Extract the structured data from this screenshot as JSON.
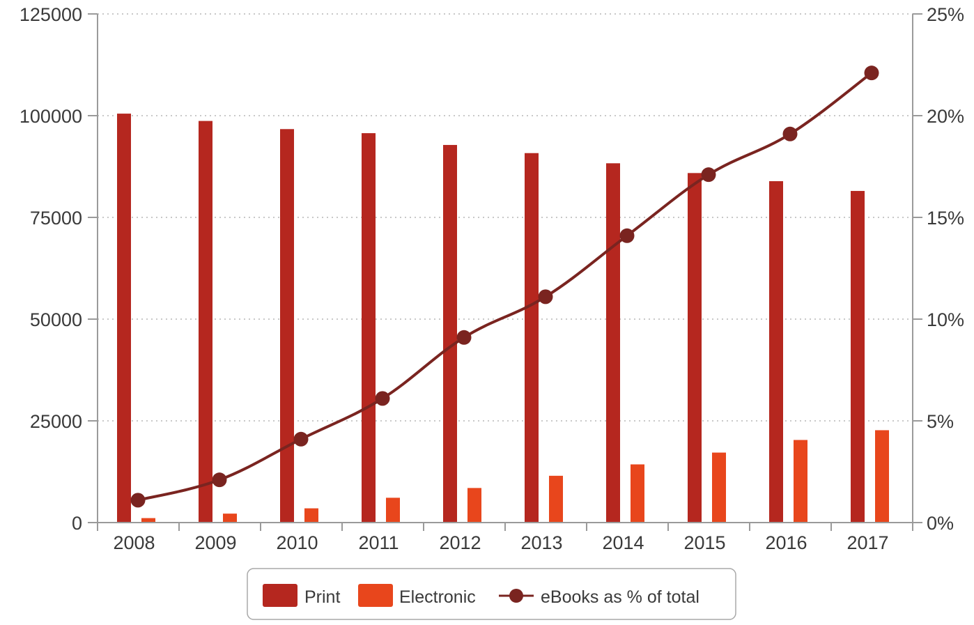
{
  "chart_data": {
    "type": "bar",
    "title": "",
    "xlabel": "",
    "ylabel": "",
    "categories": [
      "2008",
      "2009",
      "2010",
      "2011",
      "2012",
      "2013",
      "2014",
      "2015",
      "2016",
      "2017"
    ],
    "series": [
      {
        "name": "Print",
        "type": "bar",
        "axis": "left",
        "color": "#b5271f",
        "values": [
          100500,
          98700,
          96700,
          95700,
          92800,
          90800,
          88300,
          85900,
          83900,
          81500
        ]
      },
      {
        "name": "Electronic",
        "type": "bar",
        "axis": "left",
        "color": "#e8461c",
        "values": [
          1100,
          2200,
          3500,
          6100,
          8500,
          11500,
          14300,
          17200,
          20300,
          22700
        ]
      },
      {
        "name": "eBooks as % of total",
        "type": "line",
        "axis": "right",
        "color": "#7a2420",
        "values": [
          1.1,
          2.1,
          4.1,
          6.1,
          9.1,
          11.1,
          14.1,
          17.1,
          19.1,
          22.1
        ]
      }
    ],
    "ylim": [
      0,
      125000
    ],
    "y_ticks": [
      "0",
      "25000",
      "50000",
      "75000",
      "100000",
      "125000"
    ],
    "y2lim": [
      0,
      25
    ],
    "y2_ticks": [
      "0%",
      "5%",
      "10%",
      "15%",
      "20%",
      "25%"
    ],
    "grid": "horizontal dotted",
    "legend_position": "bottom"
  },
  "legend": {
    "items": [
      {
        "label": "Print",
        "kind": "box",
        "color": "#b5271f"
      },
      {
        "label": "Electronic",
        "kind": "box",
        "color": "#e8461c"
      },
      {
        "label": "eBooks as % of total",
        "kind": "line",
        "color": "#7a2420"
      }
    ]
  },
  "colors": {
    "axis": "#9a9a9a",
    "grid": "#c8c8c8",
    "text": "#3a3a3a"
  }
}
